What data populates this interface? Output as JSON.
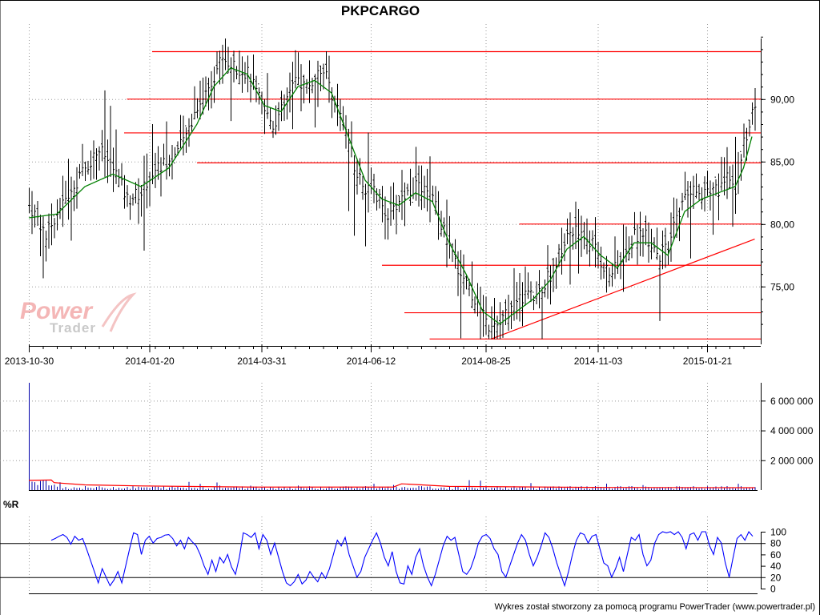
{
  "footer": "Wykres został stworzony za pomocą programu PowerTrader (www.powertrader.pl)",
  "logo": {
    "word1": "Power",
    "word2": "Trader"
  },
  "colors": {
    "candle": "#000000",
    "moving_average": "#008000",
    "levels": "#ff0000",
    "volume_bars": "#0000aa",
    "volume_average": "#ff0000",
    "williams_r": "#0000ff",
    "grid": "#999999"
  },
  "chart_data": [
    {
      "type": "ohlc",
      "title": "PKPCARGO",
      "x_ticks": [
        "2013-10-30",
        "2014-01-20",
        "2014-03-31",
        "2014-06-12",
        "2014-08-25",
        "2014-11-03",
        "2015-01-21"
      ],
      "y_ticks": [
        "75,00",
        "80,00",
        "85,00",
        "90,00"
      ],
      "ylim": [
        70.5,
        95.5
      ],
      "close_path": [
        [
          0,
          81.5
        ],
        [
          3,
          80.5
        ],
        [
          6,
          79.0
        ],
        [
          10,
          81.0
        ],
        [
          15,
          82.5
        ],
        [
          20,
          84.5
        ],
        [
          25,
          86.0
        ],
        [
          30,
          84.5
        ],
        [
          35,
          82.0
        ],
        [
          40,
          82.5
        ],
        [
          45,
          84.5
        ],
        [
          50,
          85.0
        ],
        [
          55,
          86.5
        ],
        [
          60,
          89.5
        ],
        [
          63,
          90.5
        ],
        [
          66,
          92.0
        ],
        [
          69,
          93.5
        ],
        [
          72,
          92.5
        ],
        [
          75,
          92.5
        ],
        [
          78,
          92.0
        ],
        [
          81,
          90.5
        ],
        [
          84,
          89.0
        ],
        [
          87,
          88.0
        ],
        [
          90,
          89.0
        ],
        [
          93,
          90.5
        ],
        [
          96,
          91.5
        ],
        [
          99,
          91.0
        ],
        [
          102,
          91.5
        ],
        [
          105,
          92.5
        ],
        [
          108,
          90.5
        ],
        [
          111,
          88.5
        ],
        [
          114,
          86.5
        ],
        [
          117,
          84.0
        ],
        [
          120,
          83.0
        ],
        [
          123,
          82.5
        ],
        [
          126,
          81.5
        ],
        [
          129,
          80.5
        ],
        [
          132,
          82.0
        ],
        [
          135,
          82.5
        ],
        [
          138,
          83.0
        ],
        [
          141,
          82.5
        ],
        [
          144,
          82.0
        ],
        [
          147,
          80.0
        ],
        [
          150,
          78.0
        ],
        [
          153,
          76.5
        ],
        [
          156,
          75.5
        ],
        [
          159,
          74.0
        ],
        [
          162,
          72.5
        ],
        [
          165,
          71.5
        ],
        [
          168,
          72.0
        ],
        [
          171,
          73.0
        ],
        [
          174,
          73.5
        ],
        [
          177,
          74.5
        ],
        [
          180,
          74.0
        ],
        [
          183,
          75.0
        ],
        [
          186,
          76.0
        ],
        [
          189,
          77.5
        ],
        [
          192,
          79.0
        ],
        [
          195,
          79.5
        ],
        [
          198,
          79.0
        ],
        [
          201,
          78.5
        ],
        [
          204,
          77.0
        ],
        [
          207,
          76.0
        ],
        [
          210,
          76.5
        ],
        [
          213,
          77.5
        ],
        [
          216,
          79.0
        ],
        [
          219,
          79.5
        ],
        [
          222,
          78.5
        ],
        [
          225,
          77.5
        ],
        [
          228,
          78.0
        ],
        [
          231,
          80.5
        ],
        [
          234,
          82.0
        ],
        [
          237,
          82.5
        ],
        [
          240,
          82.5
        ],
        [
          243,
          83.0
        ],
        [
          246,
          82.5
        ],
        [
          249,
          84.5
        ],
        [
          252,
          83.0
        ],
        [
          255,
          86.5
        ],
        [
          258,
          89.0
        ]
      ],
      "moving_average": [
        [
          0,
          80.5
        ],
        [
          10,
          80.8
        ],
        [
          20,
          83.0
        ],
        [
          30,
          84.0
        ],
        [
          40,
          83.0
        ],
        [
          50,
          84.5
        ],
        [
          60,
          88.0
        ],
        [
          66,
          91.0
        ],
        [
          72,
          92.5
        ],
        [
          78,
          92.0
        ],
        [
          84,
          89.5
        ],
        [
          90,
          89.0
        ],
        [
          96,
          91.0
        ],
        [
          102,
          91.5
        ],
        [
          108,
          90.5
        ],
        [
          114,
          87.0
        ],
        [
          120,
          83.5
        ],
        [
          126,
          82.0
        ],
        [
          132,
          81.5
        ],
        [
          138,
          82.5
        ],
        [
          144,
          81.8
        ],
        [
          150,
          78.5
        ],
        [
          156,
          76.0
        ],
        [
          162,
          73.0
        ],
        [
          168,
          72.0
        ],
        [
          174,
          73.0
        ],
        [
          180,
          74.0
        ],
        [
          186,
          75.5
        ],
        [
          192,
          78.0
        ],
        [
          198,
          79.0
        ],
        [
          204,
          77.5
        ],
        [
          210,
          76.5
        ],
        [
          216,
          78.5
        ],
        [
          222,
          78.5
        ],
        [
          228,
          77.5
        ],
        [
          234,
          81.0
        ],
        [
          240,
          82.0
        ],
        [
          246,
          82.5
        ],
        [
          252,
          83.0
        ],
        [
          255,
          84.5
        ],
        [
          258,
          87.0
        ]
      ],
      "horizontal_levels": [
        {
          "y": 93.8,
          "x_from": 44
        },
        {
          "y": 90.0,
          "x_from": 35
        },
        {
          "y": 87.3,
          "x_from": 34
        },
        {
          "y": 84.9,
          "x_from": 60
        },
        {
          "y": 80.0,
          "x_from": 175
        },
        {
          "y": 76.7,
          "x_from": 126
        },
        {
          "y": 72.9,
          "x_from": 134
        },
        {
          "y": 70.8,
          "x_from": 143
        }
      ],
      "trendline": [
        [
          165,
          70.8
        ],
        [
          259,
          78.8
        ]
      ],
      "n_bars": 260
    },
    {
      "type": "bar",
      "title": "",
      "y_ticks": [
        "2 000 000",
        "4 000 000",
        "6 000 000"
      ],
      "ylim": [
        0,
        7200000
      ],
      "spike": {
        "x": 0,
        "value": 7200000
      },
      "typical_volume": 150000,
      "average_line": [
        [
          0,
          650000
        ],
        [
          8,
          680000
        ],
        [
          9,
          500000
        ],
        [
          20,
          350000
        ],
        [
          40,
          280000
        ],
        [
          80,
          200000
        ],
        [
          130,
          200000
        ],
        [
          133,
          420000
        ],
        [
          150,
          250000
        ],
        [
          200,
          180000
        ],
        [
          259,
          160000
        ]
      ]
    },
    {
      "type": "line",
      "title": "%R",
      "y_ticks": [
        "0",
        "20",
        "40",
        "60",
        "80",
        "100"
      ],
      "ylim": [
        0,
        100
      ],
      "reference_lines": [
        20,
        80
      ],
      "values": [
        85,
        88,
        92,
        95,
        90,
        78,
        92,
        85,
        88,
        70,
        50,
        30,
        10,
        35,
        20,
        5,
        15,
        30,
        10,
        40,
        70,
        98,
        95,
        60,
        85,
        92,
        80,
        88,
        90,
        94,
        95,
        88,
        75,
        85,
        70,
        90,
        82,
        75,
        60,
        40,
        25,
        50,
        30,
        55,
        45,
        60,
        38,
        25,
        55,
        98,
        95,
        90,
        98,
        70,
        95,
        85,
        60,
        80,
        55,
        30,
        10,
        5,
        12,
        25,
        8,
        15,
        30,
        20,
        12,
        28,
        18,
        35,
        60,
        85,
        75,
        90,
        60,
        40,
        20,
        30,
        55,
        70,
        85,
        98,
        80,
        55,
        40,
        65,
        30,
        10,
        8,
        40,
        25,
        55,
        70,
        40,
        20,
        5,
        25,
        50,
        75,
        92,
        85,
        90,
        60,
        30,
        25,
        35,
        55,
        80,
        92,
        95,
        88,
        70,
        60,
        30,
        20,
        40,
        60,
        80,
        95,
        85,
        60,
        40,
        55,
        75,
        98,
        90,
        70,
        45,
        25,
        5,
        30,
        60,
        85,
        98,
        95,
        80,
        92,
        95,
        70,
        45,
        40,
        20,
        35,
        55,
        30,
        60,
        90,
        85,
        95,
        60,
        40,
        50,
        80,
        95,
        100,
        98,
        100,
        95,
        100,
        90,
        70,
        95,
        98,
        85,
        100,
        100,
        75,
        60,
        90,
        80,
        45,
        20,
        55,
        88,
        95,
        85,
        100,
        92
      ]
    }
  ]
}
